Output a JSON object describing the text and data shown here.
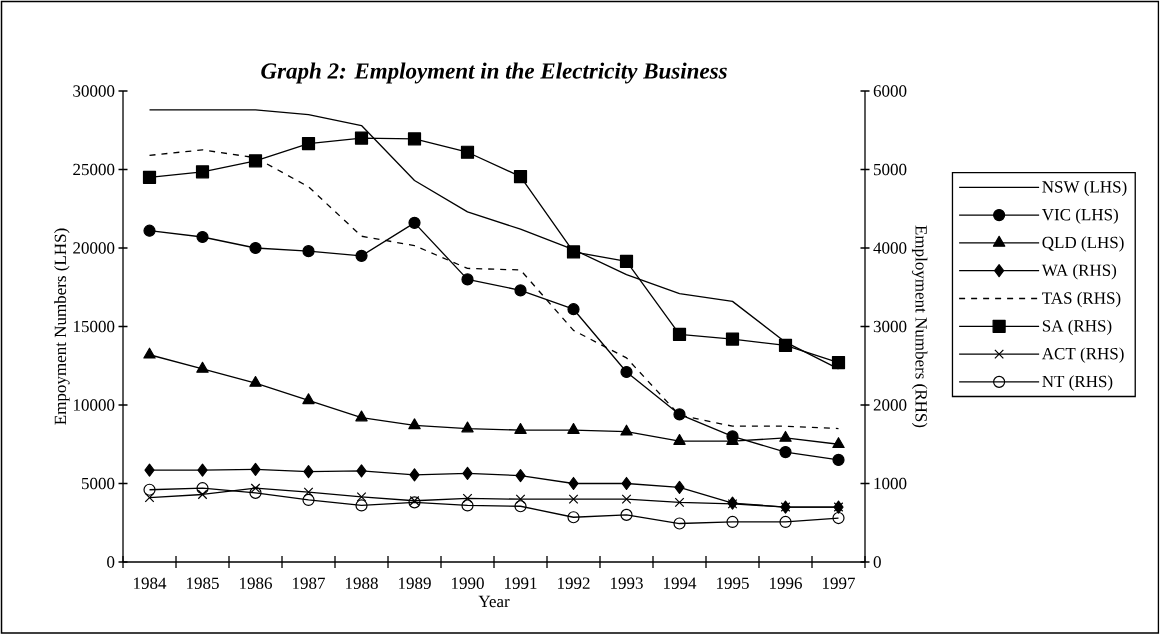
{
  "chart_data": {
    "type": "line",
    "title": "Graph 2: Employment in the Electricity Business",
    "xlabel": "Year",
    "ylabel": "Empoyment Numbers (LHS)",
    "y2label": "Employment Numbers (RHS)",
    "categories": [
      "1984",
      "1985",
      "1986",
      "1987",
      "1988",
      "1989",
      "1990",
      "1991",
      "1992",
      "1993",
      "1994",
      "1995",
      "1996",
      "1997"
    ],
    "ylim": [
      0,
      30000
    ],
    "yticks": [
      0,
      5000,
      10000,
      15000,
      20000,
      25000,
      30000
    ],
    "y2lim": [
      0,
      6000
    ],
    "y2ticks": [
      0,
      1000,
      2000,
      3000,
      4000,
      5000,
      6000
    ],
    "legend": "right",
    "grid": false,
    "line_style": "solid",
    "series": [
      {
        "name": "NSW (LHS)",
        "color": "#000000",
        "marker": "none",
        "values": [
          28800,
          28800,
          28800,
          28500,
          27800,
          24300,
          22300,
          21200,
          19900,
          18300,
          17100,
          16600,
          14000,
          12300
        ]
      },
      {
        "name": "VIC (LHS)",
        "color": "#000000",
        "marker": "circle",
        "values": [
          21100,
          20700,
          20000,
          19800,
          19500,
          21600,
          18000,
          17300,
          16100,
          12100,
          9400,
          8000,
          7000,
          6500
        ]
      },
      {
        "name": "QLD (LHS)",
        "color": "#000000",
        "marker": "triangle",
        "values": [
          13200,
          12300,
          11400,
          10300,
          9200,
          8700,
          8500,
          8400,
          8400,
          8300,
          7700,
          7700,
          7900,
          7500
        ]
      },
      {
        "name": "WA (RHS)",
        "color": "#000000",
        "marker": "diamond",
        "axis": "y2",
        "values": [
          1170,
          1170,
          1180,
          1150,
          1160,
          1110,
          1130,
          1100,
          1000,
          1000,
          950,
          750,
          700,
          700
        ]
      },
      {
        "name": "TAS (RHS)",
        "color": "#000000",
        "marker": "none",
        "line_style": "dashed",
        "axis": "y2",
        "values": [
          5180,
          5250,
          5150,
          4780,
          4150,
          4030,
          3740,
          3720,
          2950,
          2600,
          1870,
          1730,
          1730,
          1700
        ]
      },
      {
        "name": "SA (RHS)",
        "color": "#000000",
        "marker": "square",
        "axis": "y2",
        "values": [
          4900,
          4970,
          5110,
          5330,
          5400,
          5390,
          5220,
          4910,
          3950,
          3830,
          2900,
          2840,
          2760,
          2540
        ]
      },
      {
        "name": "ACT (RHS)",
        "color": "#000000",
        "marker": "cross",
        "axis": "y2",
        "values": [
          820,
          860,
          940,
          890,
          830,
          780,
          810,
          800,
          800,
          800,
          760,
          740,
          700,
          700
        ]
      },
      {
        "name": "NT (RHS)",
        "color": "#000000",
        "marker": "circle",
        "axis": "y2",
        "values": [
          920,
          940,
          880,
          790,
          720,
          760,
          720,
          710,
          570,
          600,
          490,
          510,
          510,
          560
        ]
      }
    ]
  }
}
